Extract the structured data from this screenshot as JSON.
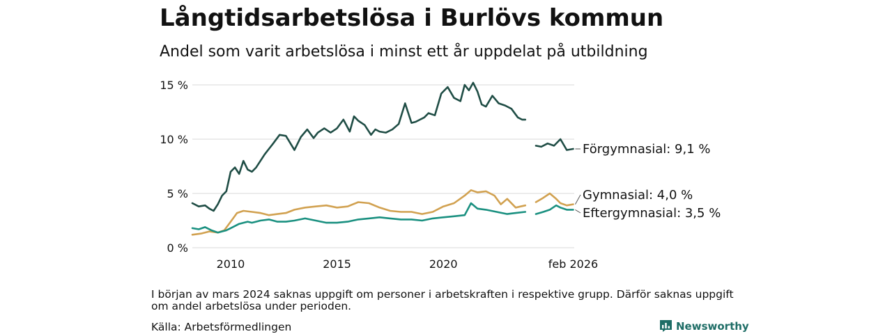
{
  "header": {
    "title": "Långtidsarbetslösa i Burlövs kommun",
    "subtitle": "Andel som varit arbetslösa i minst ett år uppdelat på utbildning"
  },
  "footer": {
    "note": "I början av mars 2024 saknas uppgift om personer i arbetskraften i respektive grupp. Därför saknas uppgift om andel arbetslösa under perioden.",
    "source": "Källa: Arbetsförmedlingen",
    "brand": "Newsworthy"
  },
  "colors": {
    "forgymnasial": "#1f4d45",
    "gymnasial": "#d1a150",
    "eftergymnasial": "#1a9080",
    "grid": "#d9d9d9",
    "text": "#111111"
  },
  "chart_data": {
    "type": "line",
    "title": "Långtidsarbetslösa i Burlövs kommun",
    "subtitle": "Andel som varit arbetslösa i minst ett år uppdelat på utbildning",
    "xlabel": "",
    "ylabel": "",
    "x_unit": "year (decimal)",
    "xlim": [
      2008.2,
      2026.15
    ],
    "ylim": [
      0,
      15
    ],
    "y_ticks": [
      {
        "value": 0,
        "label": "0 %"
      },
      {
        "value": 5,
        "label": "5 %"
      },
      {
        "value": 10,
        "label": "10 %"
      },
      {
        "value": 15,
        "label": "15 %"
      }
    ],
    "x_ticks": [
      {
        "value": 2010,
        "label": "2010"
      },
      {
        "value": 2015,
        "label": "2015"
      },
      {
        "value": 2020,
        "label": "2020"
      },
      {
        "value": 2026.1,
        "label": "feb 2026"
      }
    ],
    "gap": {
      "from": 2023.85,
      "to": 2024.35
    },
    "series": [
      {
        "name": "Förgymnasial",
        "label": "Förgymnasial: 9,1 %",
        "color_key": "forgymnasial",
        "x": [
          2008.2,
          2008.5,
          2008.8,
          2009.0,
          2009.2,
          2009.4,
          2009.6,
          2009.8,
          2010.0,
          2010.2,
          2010.4,
          2010.6,
          2010.8,
          2011.0,
          2011.2,
          2011.4,
          2011.6,
          2011.8,
          2012.0,
          2012.3,
          2012.6,
          2013.0,
          2013.3,
          2013.6,
          2013.9,
          2014.1,
          2014.4,
          2014.7,
          2015.0,
          2015.3,
          2015.6,
          2015.8,
          2016.0,
          2016.3,
          2016.6,
          2016.8,
          2017.0,
          2017.3,
          2017.6,
          2017.9,
          2018.2,
          2018.5,
          2018.7,
          2018.9,
          2019.1,
          2019.3,
          2019.6,
          2019.9,
          2020.2,
          2020.5,
          2020.8,
          2021.0,
          2021.2,
          2021.4,
          2021.6,
          2021.8,
          2022.0,
          2022.3,
          2022.6,
          2022.9,
          2023.2,
          2023.5,
          2023.7,
          2023.85,
          2024.35,
          2024.6,
          2024.9,
          2025.2,
          2025.5,
          2025.8,
          2026.1
        ],
        "y": [
          4.1,
          3.8,
          3.9,
          3.6,
          3.4,
          4.0,
          4.8,
          5.2,
          7.0,
          7.4,
          6.8,
          8.0,
          7.2,
          7.0,
          7.4,
          8.0,
          8.6,
          9.1,
          9.6,
          10.4,
          10.3,
          9.0,
          10.2,
          10.9,
          10.1,
          10.6,
          11.0,
          10.6,
          11.0,
          11.8,
          10.7,
          12.1,
          11.7,
          11.3,
          10.4,
          10.9,
          10.7,
          10.6,
          10.9,
          11.4,
          13.3,
          11.5,
          11.6,
          11.8,
          12.0,
          12.4,
          12.2,
          14.2,
          14.8,
          13.8,
          13.5,
          15.0,
          14.5,
          15.2,
          14.4,
          13.2,
          13.0,
          14.0,
          13.3,
          13.1,
          12.8,
          12.0,
          11.8,
          11.8,
          9.4,
          9.3,
          9.6,
          9.4,
          10.0,
          9.0,
          9.1
        ]
      },
      {
        "name": "Gymnasial",
        "label": "Gymnasial: 4,0 %",
        "color_key": "gymnasial",
        "x": [
          2008.2,
          2008.6,
          2009.0,
          2009.4,
          2009.7,
          2010.0,
          2010.3,
          2010.6,
          2011.0,
          2011.4,
          2011.8,
          2012.2,
          2012.6,
          2013.0,
          2013.5,
          2014.0,
          2014.5,
          2015.0,
          2015.5,
          2016.0,
          2016.5,
          2017.0,
          2017.5,
          2018.0,
          2018.5,
          2019.0,
          2019.5,
          2020.0,
          2020.5,
          2021.0,
          2021.3,
          2021.6,
          2022.0,
          2022.4,
          2022.7,
          2023.0,
          2023.4,
          2023.85,
          2024.35,
          2024.7,
          2025.0,
          2025.3,
          2025.5,
          2025.8,
          2026.1
        ],
        "y": [
          1.2,
          1.3,
          1.5,
          1.4,
          1.6,
          2.4,
          3.2,
          3.4,
          3.3,
          3.2,
          3.0,
          3.1,
          3.2,
          3.5,
          3.7,
          3.8,
          3.9,
          3.7,
          3.8,
          4.2,
          4.1,
          3.7,
          3.4,
          3.3,
          3.3,
          3.1,
          3.3,
          3.8,
          4.1,
          4.8,
          5.3,
          5.1,
          5.2,
          4.8,
          4.0,
          4.5,
          3.7,
          3.9,
          4.2,
          4.6,
          5.0,
          4.5,
          4.1,
          3.9,
          4.0
        ]
      },
      {
        "name": "Eftergymnasial",
        "label": "Eftergymnasial: 3,5 %",
        "color_key": "eftergymnasial",
        "x": [
          2008.2,
          2008.5,
          2008.8,
          2009.1,
          2009.4,
          2009.8,
          2010.0,
          2010.4,
          2010.8,
          2011.0,
          2011.4,
          2011.8,
          2012.2,
          2012.6,
          2013.0,
          2013.5,
          2014.0,
          2014.5,
          2015.0,
          2015.5,
          2016.0,
          2016.5,
          2017.0,
          2017.5,
          2018.0,
          2018.5,
          2019.0,
          2019.5,
          2020.0,
          2020.5,
          2021.0,
          2021.3,
          2021.6,
          2022.0,
          2022.5,
          2023.0,
          2023.4,
          2023.85,
          2024.35,
          2024.7,
          2025.0,
          2025.3,
          2025.5,
          2025.8,
          2026.1
        ],
        "y": [
          1.8,
          1.7,
          1.9,
          1.6,
          1.4,
          1.6,
          1.8,
          2.2,
          2.4,
          2.3,
          2.5,
          2.6,
          2.4,
          2.4,
          2.5,
          2.7,
          2.5,
          2.3,
          2.3,
          2.4,
          2.6,
          2.7,
          2.8,
          2.7,
          2.6,
          2.6,
          2.5,
          2.7,
          2.8,
          2.9,
          3.0,
          4.1,
          3.6,
          3.5,
          3.3,
          3.1,
          3.2,
          3.3,
          3.1,
          3.3,
          3.5,
          3.9,
          3.7,
          3.5,
          3.5
        ]
      }
    ]
  }
}
